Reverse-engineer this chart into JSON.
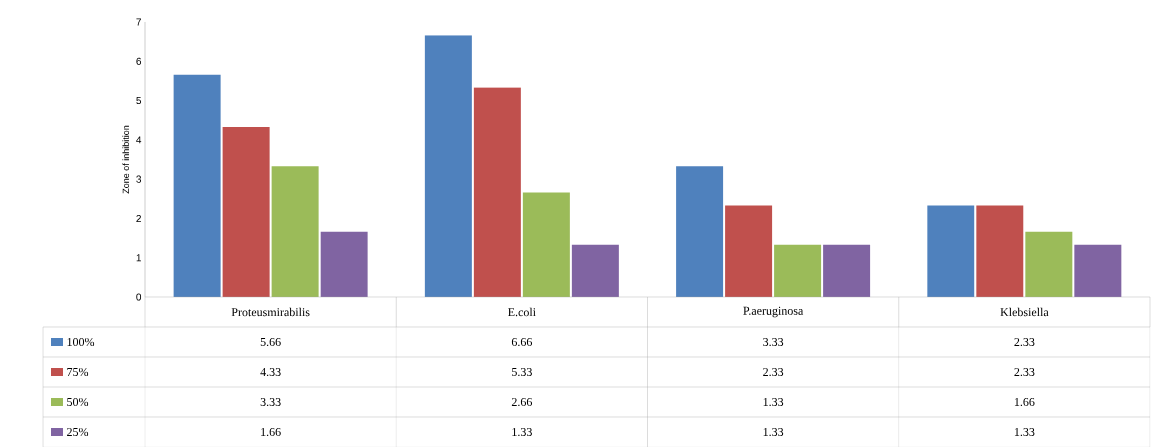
{
  "chart_data": {
    "type": "bar",
    "ylabel": "Zone of inhibition",
    "categories": [
      "Proteusmirabilis",
      "E.coli",
      "P.aeruginosa",
      "Klebsiella"
    ],
    "series": [
      {
        "name": "100%",
        "color": "#4f81bd",
        "values": [
          5.66,
          6.66,
          3.33,
          2.33
        ]
      },
      {
        "name": "75%",
        "color": "#c0504d",
        "values": [
          4.33,
          5.33,
          2.33,
          2.33
        ]
      },
      {
        "name": "50%",
        "color": "#9bbb59",
        "values": [
          3.33,
          2.66,
          1.33,
          1.66
        ]
      },
      {
        "name": "25%",
        "color": "#8064a2",
        "values": [
          1.66,
          1.33,
          1.33,
          1.33
        ]
      }
    ],
    "ylim": [
      0,
      7
    ],
    "yticks": [
      0,
      1,
      2,
      3,
      4,
      5,
      6,
      7
    ],
    "grid": false,
    "legend": "bottom",
    "data_labels": true
  }
}
